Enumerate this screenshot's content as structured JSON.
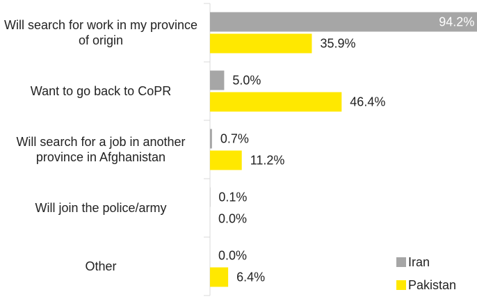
{
  "chart_data": {
    "type": "bar",
    "orientation": "horizontal",
    "categories": [
      "Will search for work in my province of origin",
      "Want to go back to CoPR",
      "Will search for a job in another province in Afghanistan",
      "Will join the police/army",
      "Other"
    ],
    "series": [
      {
        "name": "Iran",
        "color": "#a6a6a6",
        "values": [
          94.2,
          5.0,
          0.7,
          0.1,
          0.0
        ],
        "value_labels": [
          "94.2%",
          "5.0%",
          "0.7%",
          "0.1%",
          "0.0%"
        ]
      },
      {
        "name": "Pakistan",
        "color": "#ffe800",
        "values": [
          35.9,
          46.4,
          11.2,
          0.0,
          6.4
        ],
        "value_labels": [
          "35.9%",
          "46.4%",
          "11.2%",
          "0.0%",
          "6.4%"
        ]
      }
    ],
    "xlim": [
      0,
      100
    ],
    "legend": "lower right"
  }
}
